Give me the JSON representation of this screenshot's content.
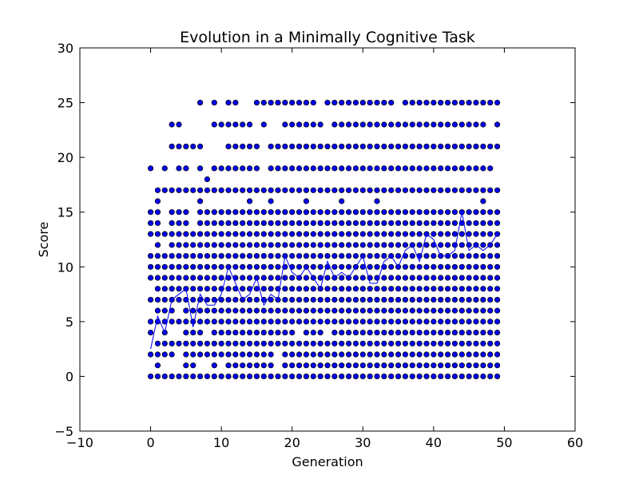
{
  "chart_data": {
    "type": "scatter",
    "title": "Evolution in a Minimally Cognitive Task",
    "xlabel": "Generation",
    "ylabel": "Score",
    "xlim": [
      -10,
      60
    ],
    "ylim": [
      -5,
      30
    ],
    "xticks": [
      -10,
      0,
      10,
      20,
      30,
      40,
      50,
      60
    ],
    "yticks": [
      -5,
      0,
      5,
      10,
      15,
      20,
      25,
      30
    ],
    "xtick_labels": [
      "−10",
      "0",
      "10",
      "20",
      "30",
      "40",
      "50",
      "60"
    ],
    "ytick_labels": [
      "−5",
      "0",
      "5",
      "10",
      "15",
      "20",
      "25",
      "30"
    ],
    "grid": false,
    "colors": {
      "marker_fill": "#0000ff",
      "marker_edge": "#000000",
      "line": "#0000ff"
    },
    "series": [
      {
        "kind": "scatter",
        "points_by_score": {
          "0": "0-49",
          "1": "1,5,6,9,11,12,13,14,15,16,17,19,20,21,22,23,24,25,26,27,28,29,30,31,32,33,34,35,36,37,38,39,40,41,42,43,44,45,46,47,48,49",
          "2": "0,1,2,3,5,6,7,8,9,10,11,12,13,14,15,16,17,19,20,21,22,23,24,25,26,27,28,29,30,31,32,33,34,35,36,37,38,39,40,41,42,43,44,45,46,47,48,49",
          "3": "1-49",
          "4": "0,2,5,6,7,9,10,11,12,13,14,15,16,17,18,19,20,22,23,24,26,27,28,29,30,31,32,33,34,35,36,37,38,39,40,41,42,43,44,45,46,47,48,49",
          "5": "0,1,2,3,4,5,6,7,8,9,10,11,12,13,14,15,16,17,18,19,20,21,22,23,24,25,26,27,28,29,30,31,32,33,34,35,36,37,38,39,40,41,42,43,44,45,46,47,48,49",
          "6": "1,2,3,5,6,7,8,9,10,11,12,13,14,15,16,17,18,19,20,21,22,23,24,25,26,27,28,29,30,31,32,33,34,35,36,37,38,39,40,41,42,43,44,45,46,47,48,49",
          "7": "0-49",
          "8": "1,2,3,4,5,6,7,8,9,10,11,12,13,14,15,16,17,18,19,20,21,22,23,24,25,26,27,28,29,30,31,32,33,34,35,36,37,38,39,40,41,42,43,44,45,46,47,48,49",
          "9": "0-49",
          "10": "0-49",
          "11": "0-49",
          "12": "1,3,4,5,6,7,8,9,10,11,12,13,14,15,16,17,18,19,20,21,22,23,24,25,26,27,28,29,30,31,32,33,34,35,36,37,38,39,40,41,42,43,44,45,46,47,48,49",
          "13": "0,1,2,3,4,5,6,7,8,9,10,11,12,13,14,15,16,17,18,19,20,21,22,23,24,25,26,27,28,29,30,31,32,33,34,35,36,37,38,39,40,41,42,43,44,45,46,47,48,49",
          "14": "0,1,3,4,5,7,8,9,10,11,12,13,14,15,16,17,18,19,20,21,22,23,24,25,26,27,28,29,30,31,32,33,34,35,36,37,38,39,40,41,42,43,44,45,46,47,48,49",
          "15": "0,1,3,4,5,7,8,9,10,11,12,13,14,15,16,17,18,19,20,21,22,23,24,25,26,27,28,29,30,31,32,33,34,35,36,37,38,39,40,41,42,43,44,45,46,47,48,49",
          "16": "1,7,14,17,22,27,32,47",
          "17": "1-49",
          "18": "8",
          "19": "0,2,4,5,7,9,10,11,12,13,14,15,17,18,19,20,21,22,23,24,25,26,27,28,29,30,31,32,33,34,35,36,37,38,39,40,41,42,43,44,45,46,47,48",
          "21": "3,4,5,6,7,11,12,13,14,15,17,18,19,20,21,22,23,24,25,26,27,28,29,30,31,32,33,34,35,36,37,38,39,40,41,42,43,44,45,46,47,48,49",
          "23": "3,4,9,10,11,12,13,14,16,19,20,21,22,23,24,26,27,28,29,30,31,32,33,34,35,36,37,38,39,40,41,42,43,44,45,46,47,49",
          "25": "7,9,11,12,15,16,17,18,19,20,21,22,23,25,26,27,28,29,30,31,32,33,34,36,37,38,39,40,41,42,43,44,45,46,47,48,49"
        }
      },
      {
        "kind": "line",
        "x": [
          0,
          1,
          2,
          3,
          4,
          5,
          6,
          7,
          8,
          9,
          10,
          11,
          12,
          13,
          14,
          15,
          16,
          17,
          18,
          19,
          20,
          21,
          22,
          23,
          24,
          25,
          26,
          27,
          28,
          29,
          30,
          31,
          32,
          33,
          34,
          35,
          36,
          37,
          38,
          39,
          40,
          41,
          42,
          43,
          44,
          45,
          46,
          47,
          48,
          49
        ],
        "y": [
          2.5,
          5.5,
          4.0,
          7.0,
          7.5,
          8.0,
          4.5,
          7.5,
          6.5,
          6.5,
          7.5,
          10.0,
          8.5,
          7.0,
          7.5,
          9.0,
          6.5,
          7.5,
          7.0,
          11.0,
          9.5,
          9.0,
          10.0,
          9.0,
          8.0,
          10.5,
          9.0,
          9.5,
          9.0,
          10.0,
          11.0,
          8.5,
          8.5,
          10.5,
          11.0,
          10.0,
          11.5,
          12.0,
          10.5,
          13.0,
          12.5,
          11.0,
          11.0,
          11.5,
          15.0,
          11.5,
          12.0,
          11.5,
          12.0,
          13.0
        ]
      }
    ]
  }
}
